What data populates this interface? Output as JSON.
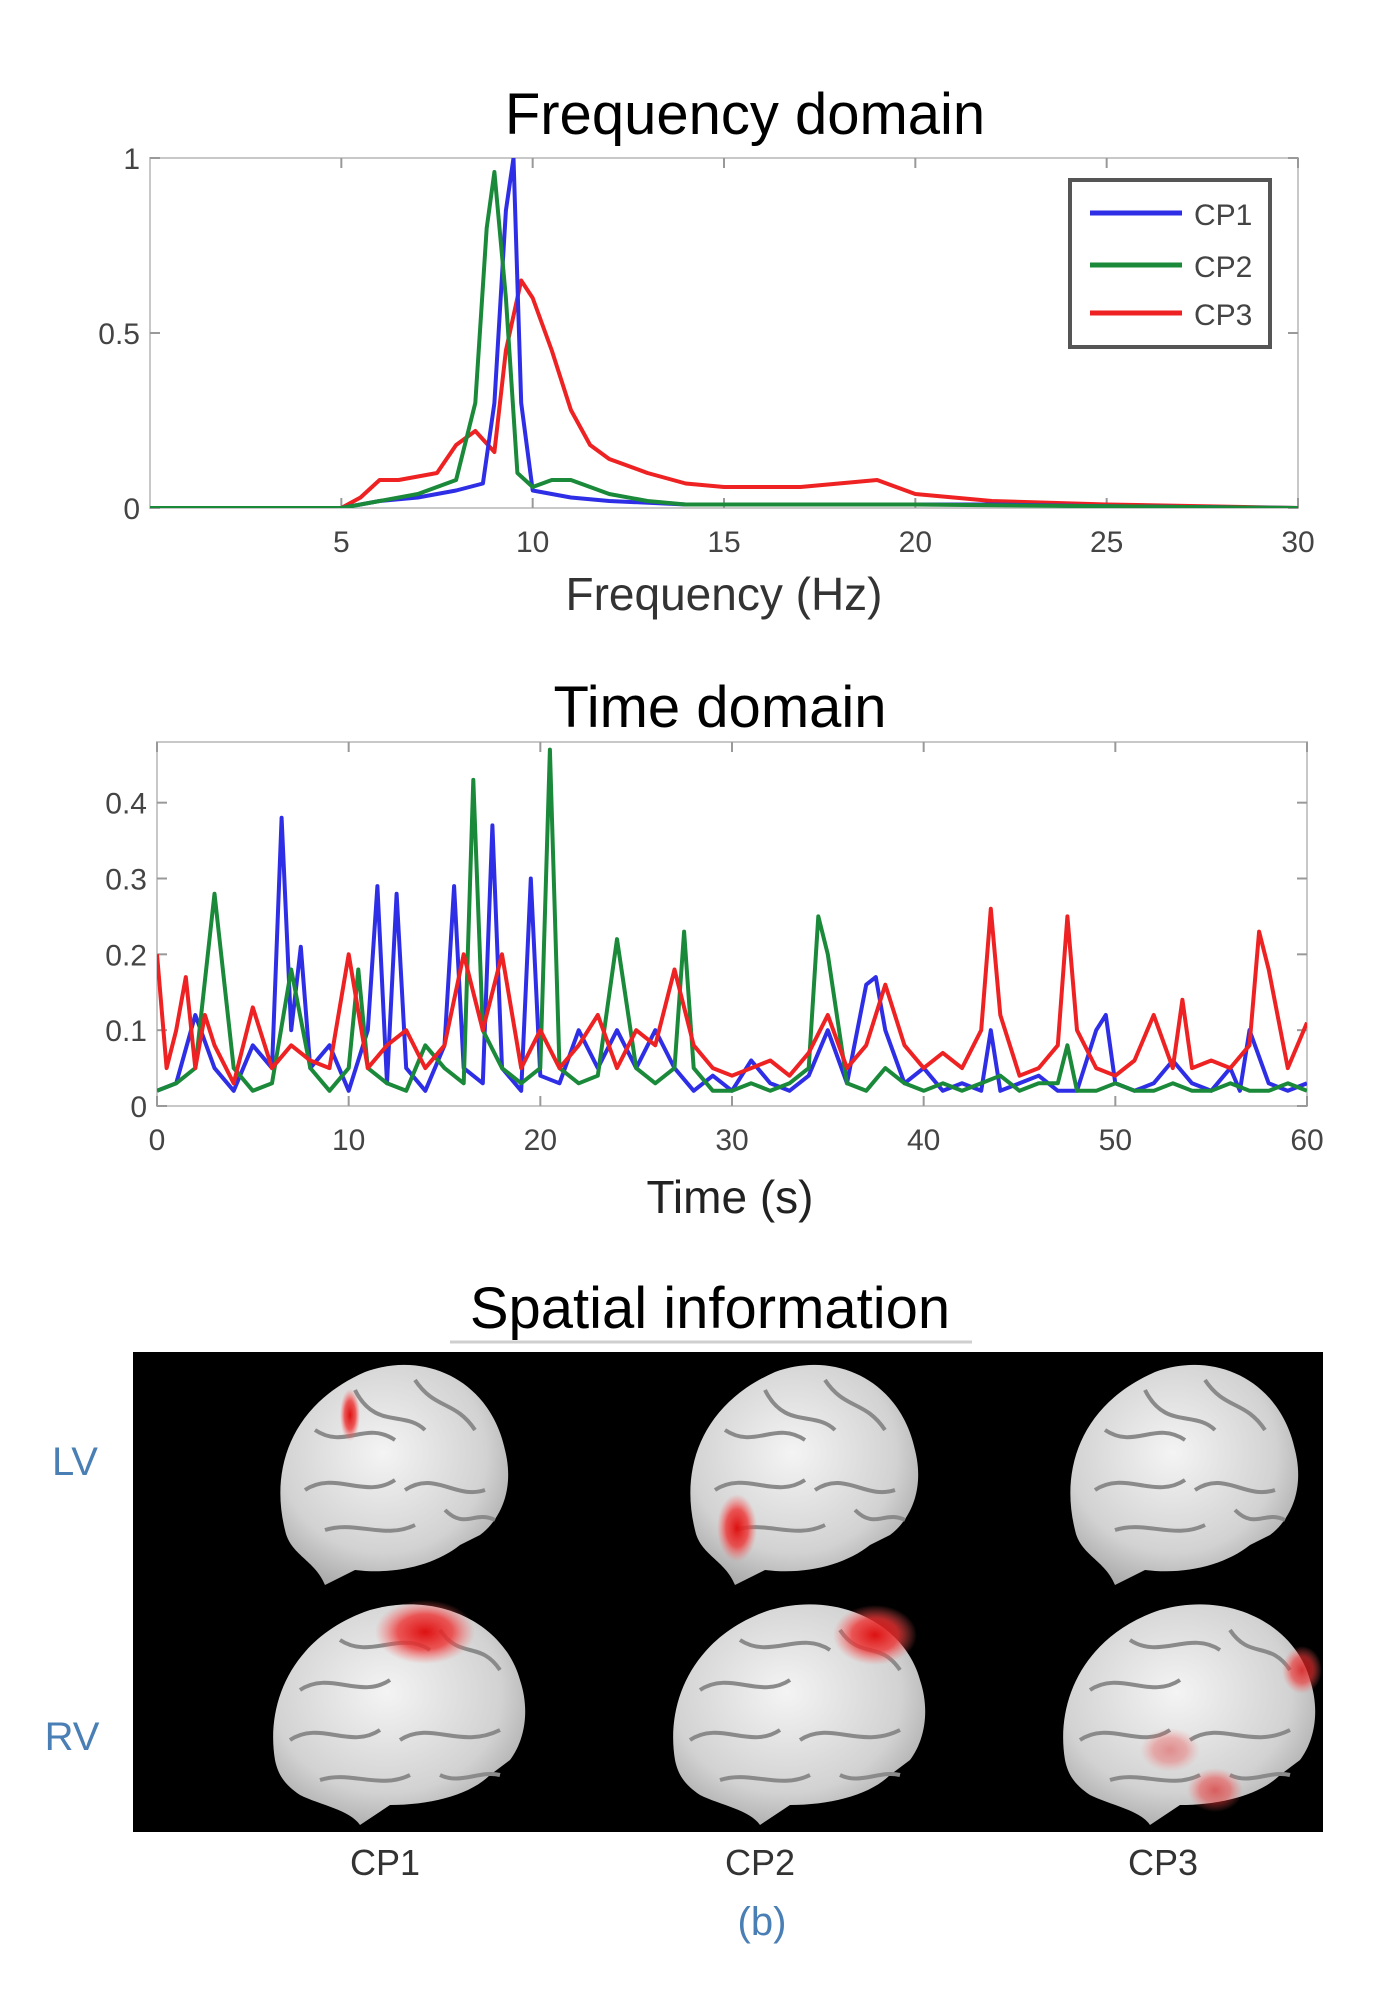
{
  "chart_data": [
    {
      "type": "line",
      "title": "Frequency domain",
      "xlabel": "Frequency (Hz)",
      "ylabel": "",
      "xlim": [
        0,
        30
      ],
      "ylim": [
        0,
        1
      ],
      "xticks": [
        "5",
        "10",
        "15",
        "20",
        "25",
        "30"
      ],
      "yticks": [
        "0",
        "0.5",
        "1"
      ],
      "legend_position": "top-right",
      "grid": false,
      "series": [
        {
          "name": "CP1",
          "color": "#2e2ee6",
          "x": [
            0,
            5,
            6,
            7,
            8,
            8.7,
            9,
            9.3,
            9.5,
            9.7,
            10,
            11,
            12,
            14,
            16,
            18,
            20,
            22,
            25,
            30
          ],
          "y": [
            0,
            0,
            0.02,
            0.03,
            0.05,
            0.07,
            0.3,
            0.85,
            1.0,
            0.3,
            0.05,
            0.03,
            0.02,
            0.01,
            0.01,
            0.01,
            0.01,
            0.01,
            0.005,
            0
          ]
        },
        {
          "name": "CP2",
          "color": "#1a8a3a",
          "x": [
            0,
            5,
            6,
            7,
            8,
            8.5,
            8.8,
            9.0,
            9.3,
            9.6,
            10,
            10.5,
            11,
            11.5,
            12,
            13,
            14,
            16,
            18,
            20,
            25,
            30
          ],
          "y": [
            0,
            0,
            0.02,
            0.04,
            0.08,
            0.3,
            0.8,
            0.96,
            0.6,
            0.1,
            0.06,
            0.08,
            0.08,
            0.06,
            0.04,
            0.02,
            0.01,
            0.01,
            0.01,
            0.01,
            0.005,
            0
          ]
        },
        {
          "name": "CP3",
          "color": "#ee2222",
          "x": [
            0,
            5,
            5.5,
            6,
            6.5,
            7,
            7.5,
            8,
            8.5,
            9,
            9.3,
            9.7,
            10,
            10.5,
            11,
            11.5,
            12,
            13,
            14,
            15,
            16,
            17,
            18,
            19,
            20,
            22,
            25,
            30
          ],
          "y": [
            0,
            0,
            0.03,
            0.08,
            0.08,
            0.09,
            0.1,
            0.18,
            0.22,
            0.16,
            0.45,
            0.65,
            0.6,
            0.45,
            0.28,
            0.18,
            0.14,
            0.1,
            0.07,
            0.06,
            0.06,
            0.06,
            0.07,
            0.08,
            0.04,
            0.02,
            0.01,
            0
          ]
        }
      ]
    },
    {
      "type": "line",
      "title": "Time domain",
      "xlabel": "Time (s)",
      "ylabel": "",
      "xlim": [
        0,
        60
      ],
      "ylim": [
        0,
        0.48
      ],
      "xticks": [
        "0",
        "10",
        "20",
        "30",
        "40",
        "50",
        "60"
      ],
      "yticks": [
        "0",
        "0.1",
        "0.2",
        "0.3",
        "0.4"
      ],
      "grid": false,
      "series": [
        {
          "name": "CP1",
          "color": "#2e2ee6",
          "x": [
            0,
            1,
            2,
            3,
            4,
            5,
            6,
            6.5,
            7,
            7.5,
            8,
            9,
            10,
            11,
            11.5,
            12,
            12.5,
            13,
            14,
            15,
            15.5,
            16,
            17,
            17.5,
            18,
            19,
            19.5,
            20,
            21,
            22,
            23,
            24,
            25,
            26,
            27,
            28,
            29,
            30,
            31,
            32,
            33,
            34,
            35,
            36,
            37,
            37.5,
            38,
            39,
            40,
            41,
            42,
            43,
            43.5,
            44,
            45,
            46,
            47,
            48,
            49,
            49.5,
            50,
            51,
            52,
            53,
            54,
            55,
            56,
            56.5,
            57,
            58,
            59,
            60
          ],
          "y": [
            0.02,
            0.03,
            0.12,
            0.05,
            0.02,
            0.08,
            0.05,
            0.38,
            0.1,
            0.21,
            0.05,
            0.08,
            0.02,
            0.1,
            0.29,
            0.03,
            0.28,
            0.05,
            0.02,
            0.08,
            0.29,
            0.05,
            0.03,
            0.37,
            0.05,
            0.02,
            0.3,
            0.04,
            0.03,
            0.1,
            0.05,
            0.1,
            0.05,
            0.1,
            0.05,
            0.02,
            0.04,
            0.02,
            0.06,
            0.03,
            0.02,
            0.04,
            0.1,
            0.03,
            0.16,
            0.17,
            0.1,
            0.03,
            0.05,
            0.02,
            0.03,
            0.02,
            0.1,
            0.02,
            0.03,
            0.04,
            0.02,
            0.02,
            0.1,
            0.12,
            0.03,
            0.02,
            0.03,
            0.06,
            0.03,
            0.02,
            0.05,
            0.02,
            0.1,
            0.03,
            0.02,
            0.03
          ]
        },
        {
          "name": "CP2",
          "color": "#1a8a3a",
          "x": [
            0,
            1,
            2,
            3,
            4,
            5,
            6,
            7,
            8,
            9,
            10,
            10.5,
            11,
            12,
            13,
            14,
            15,
            16,
            16.5,
            17,
            18,
            19,
            20,
            20.5,
            21,
            22,
            23,
            24,
            25,
            26,
            27,
            27.5,
            28,
            29,
            30,
            31,
            32,
            33,
            34,
            34.5,
            35,
            36,
            37,
            38,
            39,
            40,
            41,
            42,
            43,
            44,
            45,
            46,
            47,
            47.5,
            48,
            49,
            50,
            51,
            52,
            53,
            54,
            55,
            56,
            57,
            58,
            59,
            60
          ],
          "y": [
            0.02,
            0.03,
            0.05,
            0.28,
            0.05,
            0.02,
            0.03,
            0.18,
            0.05,
            0.02,
            0.05,
            0.18,
            0.05,
            0.03,
            0.02,
            0.08,
            0.05,
            0.03,
            0.43,
            0.1,
            0.05,
            0.03,
            0.05,
            0.47,
            0.05,
            0.03,
            0.04,
            0.22,
            0.05,
            0.03,
            0.05,
            0.23,
            0.05,
            0.02,
            0.02,
            0.03,
            0.02,
            0.03,
            0.05,
            0.25,
            0.2,
            0.03,
            0.02,
            0.05,
            0.03,
            0.02,
            0.03,
            0.02,
            0.03,
            0.04,
            0.02,
            0.03,
            0.03,
            0.08,
            0.02,
            0.02,
            0.03,
            0.02,
            0.02,
            0.03,
            0.02,
            0.02,
            0.03,
            0.02,
            0.02,
            0.03,
            0.02
          ]
        },
        {
          "name": "CP3",
          "color": "#ee2222",
          "x": [
            0,
            0.5,
            1,
            1.5,
            2,
            2.5,
            3,
            4,
            5,
            6,
            7,
            8,
            9,
            10,
            11,
            12,
            13,
            14,
            15,
            16,
            17,
            18,
            19,
            20,
            21,
            22,
            23,
            24,
            25,
            26,
            27,
            28,
            29,
            30,
            31,
            32,
            33,
            34,
            35,
            36,
            37,
            38,
            39,
            40,
            41,
            42,
            43,
            43.5,
            44,
            45,
            46,
            47,
            47.5,
            48,
            49,
            50,
            51,
            52,
            53,
            53.5,
            54,
            55,
            56,
            57,
            57.5,
            58,
            59,
            60
          ],
          "y": [
            0.2,
            0.05,
            0.1,
            0.17,
            0.05,
            0.12,
            0.08,
            0.03,
            0.13,
            0.05,
            0.08,
            0.06,
            0.05,
            0.2,
            0.05,
            0.08,
            0.1,
            0.05,
            0.08,
            0.2,
            0.1,
            0.2,
            0.05,
            0.1,
            0.05,
            0.08,
            0.12,
            0.05,
            0.1,
            0.08,
            0.18,
            0.08,
            0.05,
            0.04,
            0.05,
            0.06,
            0.04,
            0.07,
            0.12,
            0.05,
            0.08,
            0.16,
            0.08,
            0.05,
            0.07,
            0.05,
            0.1,
            0.26,
            0.12,
            0.04,
            0.05,
            0.08,
            0.25,
            0.1,
            0.05,
            0.04,
            0.06,
            0.12,
            0.05,
            0.14,
            0.05,
            0.06,
            0.05,
            0.08,
            0.23,
            0.18,
            0.05,
            0.11
          ]
        }
      ]
    }
  ],
  "spatial_panel": {
    "title": "Spatial information",
    "row_labels": [
      "LV",
      "RV"
    ],
    "column_labels": [
      "CP1",
      "CP2",
      "CP3"
    ],
    "caption": "(b)",
    "activation_color": "#dd1111",
    "label_color": "#4a7fb5"
  }
}
